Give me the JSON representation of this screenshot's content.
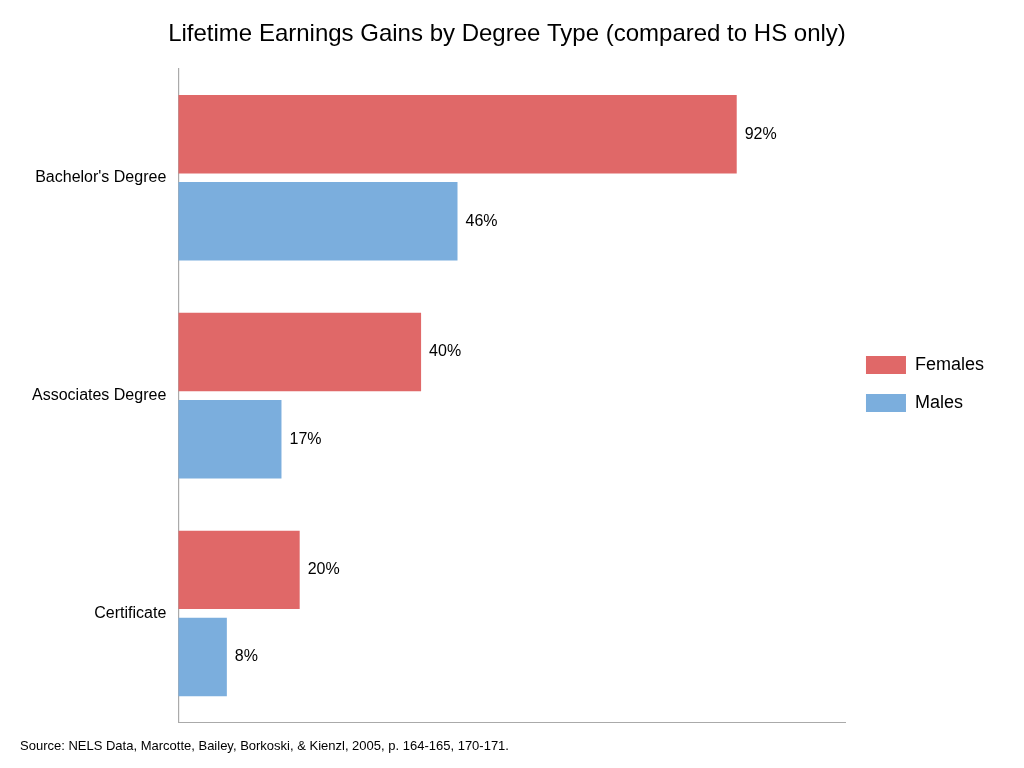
{
  "chart_data": {
    "type": "bar",
    "orientation": "horizontal",
    "title": "Lifetime Earnings Gains by Degree Type (compared to HS only)",
    "annotations": [
      "Source: NELS Data, Marcotte, Bailey, Borkoski, & Kienzl, 2005, p. 164-165, 170-171."
    ],
    "categories": [
      "Bachelor's Degree",
      "Associates Degree",
      "Certificate"
    ],
    "series": [
      {
        "name": "Females",
        "color": "#E06868",
        "values": [
          92,
          40,
          20
        ],
        "value_labels": [
          "92%",
          "40%",
          "20%"
        ]
      },
      {
        "name": "Males",
        "color": "#7BAEDD",
        "values": [
          46,
          17,
          8
        ],
        "value_labels": [
          "46%",
          "17%",
          "8%"
        ]
      }
    ],
    "xlim": [
      0,
      110
    ],
    "xticks": [],
    "tick_labels": "y",
    "grid": false,
    "legend": "right",
    "data_labels": true
  }
}
